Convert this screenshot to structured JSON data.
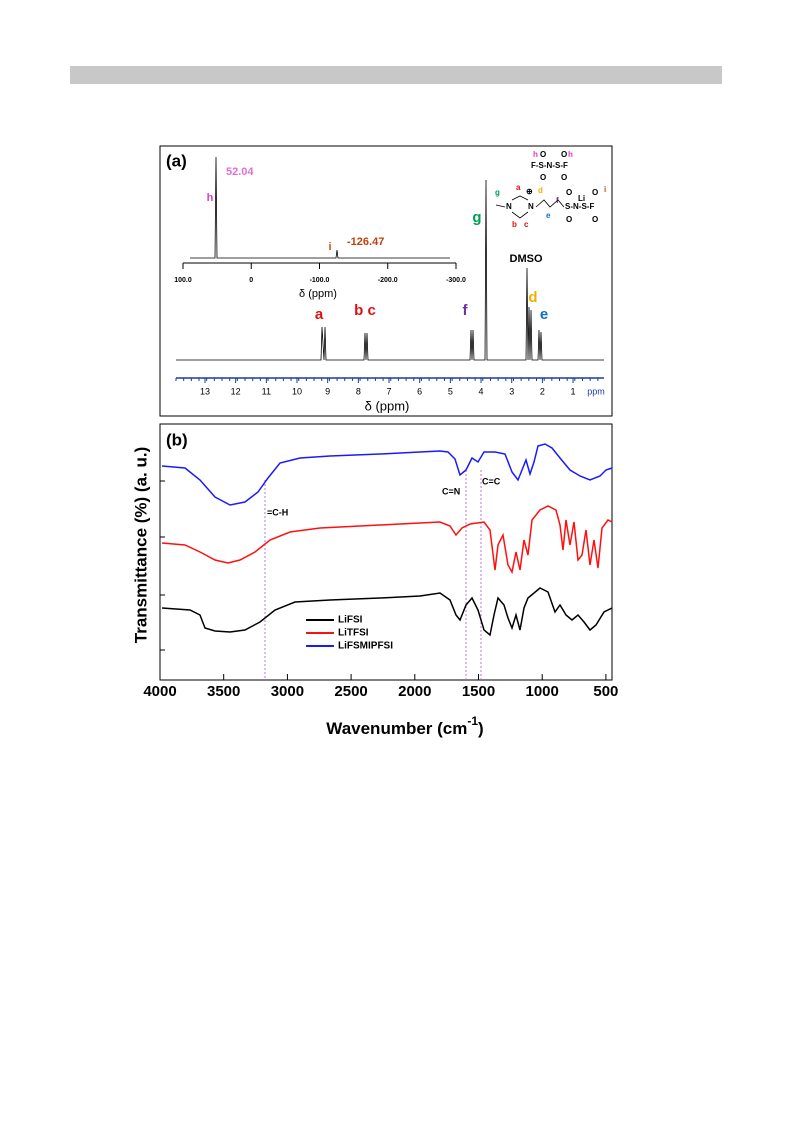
{
  "figure": {
    "panel_a": {
      "label": "(a)",
      "x_ticks": [
        "13",
        "12",
        "11",
        "10",
        "9",
        "8",
        "7",
        "6",
        "5",
        "4",
        "3",
        "2",
        "1"
      ],
      "x_unit": "ppm",
      "x_label": "δ (ppm)",
      "peak_labels": {
        "a": "a",
        "bc": "b c",
        "f": "f",
        "g": "g",
        "d": "d",
        "e": "e",
        "solvent": "DMSO"
      },
      "inset": {
        "x_ticks": [
          "100.0",
          "0",
          "-100.0",
          "-200.0",
          "-300.0"
        ],
        "x_label": "δ (ppm)",
        "peak_labels": [
          "h",
          "i"
        ],
        "shift_labels": [
          "52.04",
          "-126.47"
        ]
      },
      "structure": {
        "anion_top": [
          "h",
          "O",
          "O",
          "h"
        ],
        "anion_mid": "F-S-N-S-F",
        "anion_bottom": [
          "O",
          "O"
        ],
        "cation_labels": [
          "g",
          "a",
          "⊕",
          "d",
          "b",
          "c",
          "e",
          "f"
        ],
        "cation_n": [
          "N",
          "N"
        ],
        "cation_li": "Li",
        "cation_i": "i",
        "cation_top": [
          "O",
          "O"
        ],
        "cation_mid": "S-N-S-F",
        "cation_bottom": [
          "O",
          "O"
        ]
      }
    },
    "panel_b": {
      "label": "(b)",
      "y_label": "Transmittance (%) (a. u.)",
      "x_label": "Wavenumber (cm",
      "x_label_sup": "-1",
      "x_label_end": ")",
      "x_ticks": [
        "4000",
        "3500",
        "3000",
        "2500",
        "2000",
        "1500",
        "1000",
        "500"
      ],
      "annotations": [
        "=C-H",
        "C=N",
        "C=C"
      ],
      "legend": [
        "LiFSI",
        "LiTFSI",
        "LiFSMIPFSI"
      ]
    }
  }
}
